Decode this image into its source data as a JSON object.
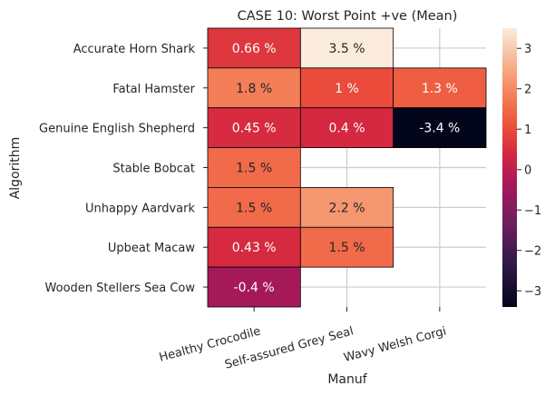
{
  "chart_data": {
    "type": "heatmap",
    "title": "CASE 10: Worst Point +ve (Mean)",
    "xlabel": "Manuf",
    "ylabel": "Algorithm",
    "rows": [
      "Accurate Horn Shark",
      "Fatal Hamster",
      "Genuine English Shepherd",
      "Stable Bobcat",
      "Unhappy Aardvark",
      "Upbeat Macaw",
      "Wooden Stellers Sea Cow"
    ],
    "columns": [
      "Healthy Crocodile",
      "Self-assured Grey Seal",
      "Wavy Welsh Corgi"
    ],
    "values": [
      [
        0.66,
        3.5,
        null
      ],
      [
        1.8,
        1.0,
        1.3
      ],
      [
        0.45,
        0.4,
        -3.4
      ],
      [
        1.5,
        null,
        null
      ],
      [
        1.5,
        2.2,
        null
      ],
      [
        0.43,
        1.5,
        null
      ],
      [
        -0.4,
        null,
        null
      ]
    ],
    "cell_labels": [
      [
        "0.66 %",
        "3.5 %",
        ""
      ],
      [
        "1.8 %",
        "1 %",
        "1.3 %"
      ],
      [
        "0.45 %",
        "0.4 %",
        "-3.4 %"
      ],
      [
        "1.5 %",
        "",
        ""
      ],
      [
        "1.5 %",
        "2.2 %",
        ""
      ],
      [
        "0.43 %",
        "1.5 %",
        ""
      ],
      [
        "-0.4 %",
        "",
        ""
      ]
    ],
    "colorbar": {
      "vmin": -3.4,
      "vmax": 3.5,
      "ticks": [
        -3,
        -2,
        -1,
        0,
        1,
        2,
        3
      ],
      "colormap": "rocket"
    },
    "grid": true
  }
}
